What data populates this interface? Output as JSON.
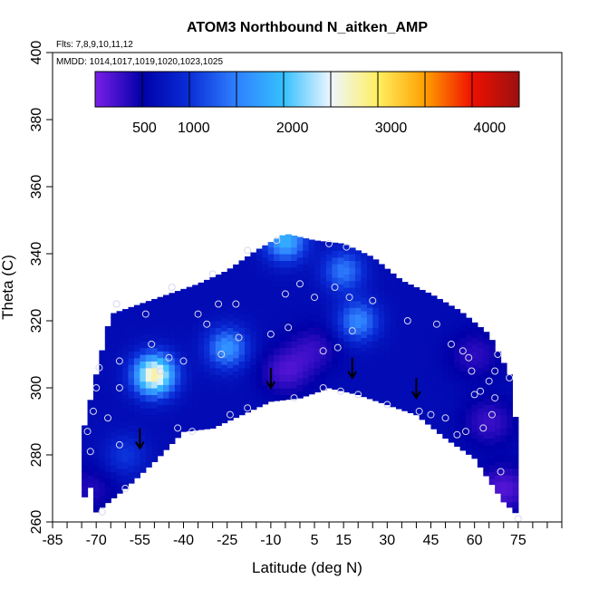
{
  "chart_data": {
    "type": "heatmap",
    "title": "ATOM3 Northbound N_aitken_AMP",
    "flights_label": "Flts: 7,8,9,10,11,12",
    "dates_label": "MMDD: 1014,1017,1019,1020,1023,1025",
    "xlabel": "Latitude (deg N)",
    "ylabel": "Theta (C)",
    "xlim": [
      -85,
      90
    ],
    "ylim": [
      260,
      400
    ],
    "x_ticks": [
      -85,
      -70,
      -55,
      -40,
      -25,
      -10,
      5,
      15,
      30,
      45,
      60,
      75
    ],
    "y_ticks": [
      260,
      280,
      300,
      320,
      340,
      360,
      380,
      400
    ],
    "colorbar": {
      "min": 0,
      "max": 4300,
      "ticks": [
        500,
        1000,
        2000,
        3000,
        4000
      ],
      "colors": [
        "#7a1fe8",
        "#0000a8",
        "#0a2ed8",
        "#2f80ff",
        "#35c0ff",
        "#eef6ff",
        "#ffef60",
        "#ffa000",
        "#f01000",
        "#9a1010"
      ]
    },
    "coverage_bottom": [
      [
        -75,
        261
      ],
      [
        -73,
        274
      ],
      [
        -70,
        263
      ],
      [
        -60,
        270
      ],
      [
        -50,
        278
      ],
      [
        -40,
        287
      ],
      [
        -30,
        288
      ],
      [
        -20,
        292
      ],
      [
        -10,
        296
      ],
      [
        0,
        297
      ],
      [
        10,
        300
      ],
      [
        20,
        298
      ],
      [
        30,
        295
      ],
      [
        40,
        292
      ],
      [
        50,
        285
      ],
      [
        60,
        279
      ],
      [
        70,
        266
      ],
      [
        75,
        262
      ]
    ],
    "coverage_top": [
      [
        -75,
        285
      ],
      [
        -70,
        304
      ],
      [
        -65,
        322
      ],
      [
        -55,
        325
      ],
      [
        -45,
        328
      ],
      [
        -35,
        331
      ],
      [
        -25,
        335
      ],
      [
        -15,
        341
      ],
      [
        -5,
        346
      ],
      [
        5,
        344
      ],
      [
        15,
        343
      ],
      [
        25,
        339
      ],
      [
        35,
        332
      ],
      [
        45,
        328
      ],
      [
        55,
        323
      ],
      [
        65,
        316
      ],
      [
        72,
        304
      ],
      [
        75,
        285
      ]
    ],
    "hot_spots": [
      {
        "lat": -50,
        "theta": 304,
        "value": 2700
      },
      {
        "lat": -25,
        "theta": 312,
        "value": 1600
      },
      {
        "lat": -5,
        "theta": 344,
        "value": 1800
      },
      {
        "lat": 20,
        "theta": 320,
        "value": 1500
      },
      {
        "lat": 15,
        "theta": 335,
        "value": 1400
      },
      {
        "lat": -60,
        "theta": 280,
        "value": 1000
      }
    ],
    "cold_spots": [
      {
        "lat": -5,
        "theta": 305,
        "value": 200
      },
      {
        "lat": 5,
        "theta": 312,
        "value": 300
      },
      {
        "lat": 65,
        "theta": 290,
        "value": 250
      },
      {
        "lat": 70,
        "theta": 270,
        "value": 150
      },
      {
        "lat": -72,
        "theta": 270,
        "value": 350
      },
      {
        "lat": 60,
        "theta": 310,
        "value": 300
      }
    ],
    "background_value": 600,
    "sample_points": [
      [
        -73,
        287
      ],
      [
        -72,
        281
      ],
      [
        -71,
        293
      ],
      [
        -70,
        300
      ],
      [
        -69,
        306
      ],
      [
        -68,
        263
      ],
      [
        -66,
        291
      ],
      [
        -63,
        325
      ],
      [
        -62,
        308
      ],
      [
        -62,
        300
      ],
      [
        -62,
        283
      ],
      [
        -60,
        270
      ],
      [
        -53,
        322
      ],
      [
        -51,
        313
      ],
      [
        -48,
        305
      ],
      [
        -45,
        309
      ],
      [
        -44,
        330
      ],
      [
        -42,
        288
      ],
      [
        -40,
        308
      ],
      [
        -37,
        287
      ],
      [
        -35,
        322
      ],
      [
        -32,
        319
      ],
      [
        -30,
        334
      ],
      [
        -28,
        325
      ],
      [
        -27,
        310
      ],
      [
        -24,
        292
      ],
      [
        -22,
        325
      ],
      [
        -21,
        315
      ],
      [
        -18,
        294
      ],
      [
        -18,
        341
      ],
      [
        -10,
        316
      ],
      [
        -8,
        344
      ],
      [
        -5,
        328
      ],
      [
        -4,
        318
      ],
      [
        -2,
        297
      ],
      [
        0,
        331
      ],
      [
        5,
        327
      ],
      [
        8,
        300
      ],
      [
        8,
        311
      ],
      [
        10,
        343
      ],
      [
        12,
        330
      ],
      [
        13,
        312
      ],
      [
        14,
        299
      ],
      [
        16,
        342
      ],
      [
        17,
        327
      ],
      [
        18,
        317
      ],
      [
        20,
        298
      ],
      [
        25,
        326
      ],
      [
        30,
        295
      ],
      [
        37,
        320
      ],
      [
        41,
        293
      ],
      [
        45,
        292
      ],
      [
        47,
        319
      ],
      [
        50,
        291
      ],
      [
        52,
        313
      ],
      [
        54,
        286
      ],
      [
        56,
        311
      ],
      [
        57,
        287
      ],
      [
        58,
        309
      ],
      [
        59,
        305
      ],
      [
        60,
        298
      ],
      [
        62,
        299
      ],
      [
        63,
        288
      ],
      [
        65,
        302
      ],
      [
        66,
        292
      ],
      [
        67,
        305
      ],
      [
        67,
        297
      ],
      [
        68,
        310
      ],
      [
        69,
        275
      ],
      [
        72,
        303
      ],
      [
        75,
        261
      ]
    ],
    "arrows": [
      {
        "lat": -55,
        "theta": 282
      },
      {
        "lat": -10,
        "theta": 300
      },
      {
        "lat": 18,
        "theta": 303
      },
      {
        "lat": 40,
        "theta": 297
      }
    ]
  }
}
